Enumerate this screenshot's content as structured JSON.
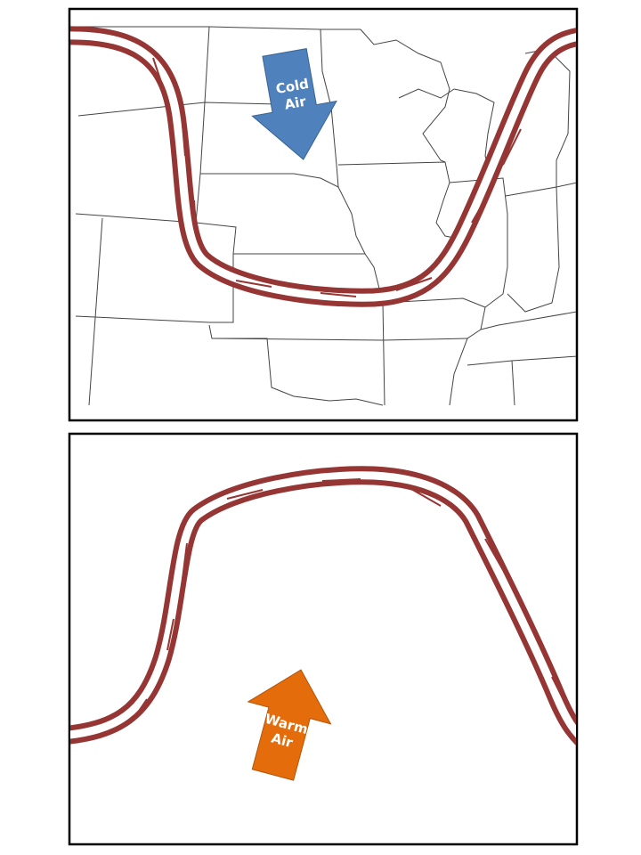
{
  "panels": [
    {
      "id": "trough",
      "air_label_line1": "Cold",
      "air_label_line2": "Air",
      "arrow_direction": "south",
      "arrow_color": "#4f81bd"
    },
    {
      "id": "ridge",
      "air_label_line1": "Warm",
      "air_label_line2": "Air",
      "arrow_direction": "north",
      "arrow_color": "#e46c0a"
    }
  ],
  "jet_stream_color": "#963634"
}
